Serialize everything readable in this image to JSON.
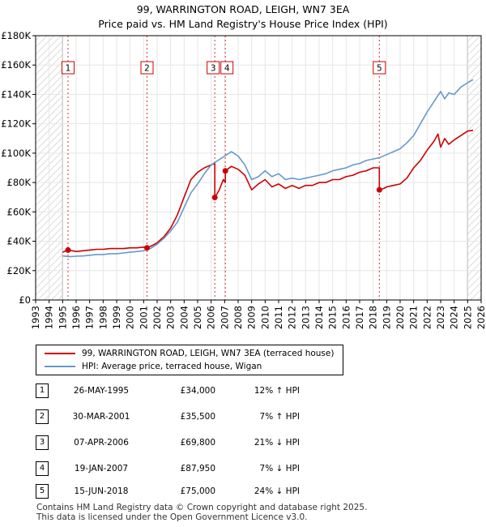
{
  "chart_data": {
    "type": "line",
    "title": "99, WARRINGTON ROAD, LEIGH, WN7 3EA",
    "subtitle": "Price paid vs. HM Land Registry's House Price Index (HPI)",
    "xlim": [
      1993,
      2026
    ],
    "ylim": [
      0,
      180000
    ],
    "y_ticks": [
      0,
      20000,
      40000,
      60000,
      80000,
      100000,
      120000,
      140000,
      160000,
      180000
    ],
    "y_tick_labels": [
      "£0",
      "£20K",
      "£40K",
      "£60K",
      "£80K",
      "£100K",
      "£120K",
      "£140K",
      "£160K",
      "£180K"
    ],
    "x_ticks": [
      1993,
      1994,
      1995,
      1996,
      1997,
      1998,
      1999,
      2000,
      2001,
      2002,
      2003,
      2004,
      2005,
      2006,
      2007,
      2008,
      2009,
      2010,
      2011,
      2012,
      2013,
      2014,
      2015,
      2016,
      2017,
      2018,
      2019,
      2020,
      2021,
      2022,
      2023,
      2024,
      2025,
      2026
    ],
    "x_tick_labels": [
      "1993",
      "1994",
      "1995",
      "1996",
      "1997",
      "1998",
      "1999",
      "2000",
      "2001",
      "2002",
      "2003",
      "2004",
      "2005",
      "2006",
      "2007",
      "2008",
      "2009",
      "2010",
      "2011",
      "2012",
      "2013",
      "2014",
      "2015",
      "2016",
      "2017",
      "2018",
      "2019",
      "2020",
      "2021",
      "2022",
      "2023",
      "2024",
      "2025",
      "2026"
    ],
    "hatch_before": 1995.0,
    "hatch_after": 2025.0,
    "series": [
      {
        "name": "99, WARRINGTON ROAD, LEIGH, WN7 3EA (terraced house)",
        "color": "#cc0000",
        "x": [
          1995.0,
          1995.4,
          1996.0,
          1996.5,
          1997.0,
          1997.5,
          1998.0,
          1998.5,
          1999.0,
          1999.5,
          2000.0,
          2000.5,
          2001.0,
          2001.25,
          2001.5,
          2002.0,
          2002.5,
          2003.0,
          2003.5,
          2004.0,
          2004.5,
          2005.0,
          2005.5,
          2006.0,
          2006.27,
          2006.27,
          2006.6,
          2006.9,
          2007.05,
          2007.05,
          2007.5,
          2008.0,
          2008.5,
          2009.0,
          2009.5,
          2010.0,
          2010.5,
          2011.0,
          2011.5,
          2012.0,
          2012.5,
          2013.0,
          2013.5,
          2014.0,
          2014.5,
          2015.0,
          2015.5,
          2016.0,
          2016.5,
          2017.0,
          2017.5,
          2018.0,
          2018.4,
          2018.46,
          2018.46,
          2018.8,
          2019.0,
          2019.5,
          2020.0,
          2020.5,
          2021.0,
          2021.5,
          2022.0,
          2022.5,
          2022.8,
          2023.0,
          2023.3,
          2023.6,
          2024.0,
          2024.5,
          2025.0,
          2025.4
        ],
        "values": [
          32500,
          34000,
          33000,
          33500,
          34000,
          34500,
          34500,
          35000,
          35000,
          35000,
          35500,
          35500,
          36000,
          35500,
          36500,
          39000,
          43000,
          49000,
          58000,
          70000,
          82000,
          87000,
          90000,
          92000,
          93000,
          69800,
          75000,
          82000,
          80000,
          87950,
          91000,
          89000,
          85000,
          75000,
          79000,
          82000,
          77000,
          79000,
          76000,
          78000,
          76000,
          78000,
          78000,
          80000,
          80000,
          82000,
          82000,
          84000,
          85000,
          87000,
          88000,
          90000,
          90000,
          90000,
          75000,
          76000,
          77000,
          78000,
          79000,
          83000,
          90000,
          95000,
          102000,
          108000,
          113000,
          104000,
          110000,
          106000,
          109000,
          112000,
          115000,
          115500
        ]
      },
      {
        "name": "HPI: Average price, terraced house, Wigan",
        "color": "#6699cc",
        "x": [
          1995.0,
          1995.5,
          1996.0,
          1996.5,
          1997.0,
          1997.5,
          1998.0,
          1998.5,
          1999.0,
          1999.5,
          2000.0,
          2000.5,
          2001.0,
          2001.5,
          2002.0,
          2002.5,
          2003.0,
          2003.5,
          2004.0,
          2004.5,
          2005.0,
          2005.5,
          2006.0,
          2006.5,
          2007.0,
          2007.5,
          2008.0,
          2008.5,
          2009.0,
          2009.5,
          2010.0,
          2010.5,
          2011.0,
          2011.5,
          2012.0,
          2012.5,
          2013.0,
          2013.5,
          2014.0,
          2014.5,
          2015.0,
          2015.5,
          2016.0,
          2016.5,
          2017.0,
          2017.5,
          2018.0,
          2018.5,
          2019.0,
          2019.5,
          2020.0,
          2020.5,
          2021.0,
          2021.5,
          2022.0,
          2022.5,
          2023.0,
          2023.3,
          2023.6,
          2024.0,
          2024.5,
          2025.0,
          2025.4
        ],
        "values": [
          30000,
          29500,
          29800,
          30000,
          30500,
          31000,
          31000,
          31500,
          31500,
          32000,
          32500,
          33000,
          33500,
          35000,
          38000,
          42000,
          47000,
          53000,
          63000,
          73000,
          79000,
          86000,
          92000,
          95000,
          98000,
          101000,
          98000,
          92000,
          82000,
          84000,
          88000,
          84000,
          86000,
          82000,
          83000,
          82000,
          83000,
          84000,
          85000,
          86000,
          88000,
          89000,
          90000,
          92000,
          93000,
          95000,
          96000,
          97000,
          99000,
          101000,
          103000,
          107000,
          112000,
          120000,
          128000,
          135000,
          142000,
          137000,
          141000,
          140000,
          145000,
          148000,
          150000
        ]
      }
    ],
    "sales": [
      {
        "n": "1",
        "x": 1995.4,
        "value": 34000
      },
      {
        "n": "2",
        "x": 2001.25,
        "value": 35500
      },
      {
        "n": "3",
        "x": 2006.27,
        "value": 69800
      },
      {
        "n": "4",
        "x": 2007.05,
        "value": 87950
      },
      {
        "n": "5",
        "x": 2018.46,
        "value": 75000
      }
    ]
  },
  "legend": {
    "property_label": "99, WARRINGTON ROAD, LEIGH, WN7 3EA (terraced house)",
    "hpi_label": "HPI: Average price, terraced house, Wigan"
  },
  "sales_table": [
    {
      "n": "1",
      "date": "26-MAY-1995",
      "price": "£34,000",
      "hpi": "12% ↑ HPI"
    },
    {
      "n": "2",
      "date": "30-MAR-2001",
      "price": "£35,500",
      "hpi": "7% ↑ HPI"
    },
    {
      "n": "3",
      "date": "07-APR-2006",
      "price": "£69,800",
      "hpi": "21% ↓ HPI"
    },
    {
      "n": "4",
      "date": "19-JAN-2007",
      "price": "£87,950",
      "hpi": "7% ↓ HPI"
    },
    {
      "n": "5",
      "date": "15-JUN-2018",
      "price": "£75,000",
      "hpi": "24% ↓ HPI"
    }
  ],
  "footer": {
    "line1": "Contains HM Land Registry data © Crown copyright and database right 2025.",
    "line2": "This data is licensed under the Open Government Licence v3.0."
  }
}
